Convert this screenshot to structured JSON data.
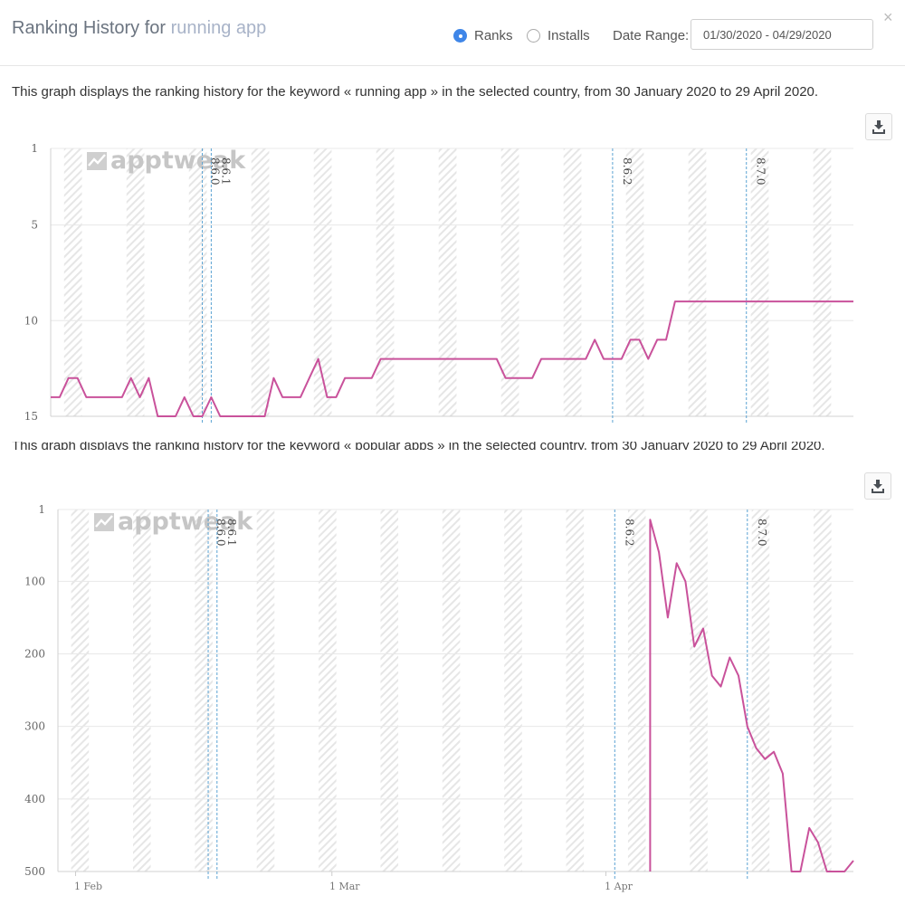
{
  "header": {
    "title_prefix": "Ranking History for",
    "keyword": "running app",
    "radio_ranks": "Ranks",
    "radio_installs": "Installs",
    "selected_radio": "Ranks",
    "date_range_label": "Date Range:",
    "date_range_value": "01/30/2020 - 04/29/2020",
    "close_glyph": "×"
  },
  "descriptions": {
    "chart1": "This graph displays the ranking history for the keyword « running app » in the selected country, from 30 January 2020 to 29 April 2020.",
    "chart2": "This graph displays the ranking history for the keyword « popular apps » in the selected country, from 30 January 2020 to 29 April 2020."
  },
  "icons": {
    "download": "download-icon",
    "close": "close-icon",
    "watermark": "apptweak-logo-icon"
  },
  "colors": {
    "line": "#c9529b",
    "version_line": "#5aa2d3",
    "accent": "#3f86e8"
  },
  "chart_data": [
    {
      "type": "line",
      "title": "",
      "watermark": "apptweak",
      "y_reversed": true,
      "ylim": [
        1,
        15
      ],
      "y_ticks": [
        "1",
        "5",
        "10",
        "15"
      ],
      "x_tick_labels": [],
      "x_start_date": "2020-01-30",
      "x_end_date": "2020-04-29",
      "weekend_shading": true,
      "versions": [
        {
          "label": "8.6.0",
          "date": "2020-02-16"
        },
        {
          "label": "8.6.1",
          "date": "2020-02-17"
        },
        {
          "label": "8.6.2",
          "date": "2020-04-02"
        },
        {
          "label": "8.7.0",
          "date": "2020-04-17"
        }
      ],
      "series": [
        {
          "x": [
            "2020-01-30",
            "2020-01-31",
            "2020-02-01",
            "2020-02-02",
            "2020-02-03",
            "2020-02-04",
            "2020-02-05",
            "2020-02-06",
            "2020-02-07",
            "2020-02-08",
            "2020-02-09",
            "2020-02-10",
            "2020-02-11",
            "2020-02-12",
            "2020-02-13",
            "2020-02-14",
            "2020-02-15",
            "2020-02-16",
            "2020-02-17",
            "2020-02-18",
            "2020-02-19",
            "2020-02-20",
            "2020-02-21",
            "2020-02-22",
            "2020-02-23",
            "2020-02-24",
            "2020-02-25",
            "2020-02-26",
            "2020-02-27",
            "2020-02-28",
            "2020-02-29",
            "2020-03-01",
            "2020-03-02",
            "2020-03-03",
            "2020-03-04",
            "2020-03-05",
            "2020-03-06",
            "2020-03-07",
            "2020-03-08",
            "2020-03-09",
            "2020-03-10",
            "2020-03-11",
            "2020-03-12",
            "2020-03-13",
            "2020-03-14",
            "2020-03-15",
            "2020-03-16",
            "2020-03-17",
            "2020-03-18",
            "2020-03-19",
            "2020-03-20",
            "2020-03-21",
            "2020-03-22",
            "2020-03-23",
            "2020-03-24",
            "2020-03-25",
            "2020-03-26",
            "2020-03-27",
            "2020-03-28",
            "2020-03-29",
            "2020-03-30",
            "2020-03-31",
            "2020-04-01",
            "2020-04-02",
            "2020-04-03",
            "2020-04-04",
            "2020-04-05",
            "2020-04-06",
            "2020-04-07",
            "2020-04-08",
            "2020-04-09",
            "2020-04-10",
            "2020-04-11",
            "2020-04-12",
            "2020-04-13",
            "2020-04-14",
            "2020-04-15",
            "2020-04-16",
            "2020-04-17",
            "2020-04-18",
            "2020-04-19",
            "2020-04-20",
            "2020-04-21",
            "2020-04-22",
            "2020-04-23",
            "2020-04-24",
            "2020-04-25",
            "2020-04-26",
            "2020-04-27",
            "2020-04-28",
            "2020-04-29"
          ],
          "y": [
            14,
            14,
            13,
            13,
            14,
            14,
            14,
            14,
            14,
            13,
            14,
            13,
            15,
            15,
            15,
            14,
            15,
            15,
            14,
            15,
            15,
            15,
            15,
            15,
            15,
            13,
            14,
            14,
            14,
            13,
            12,
            14,
            14,
            13,
            13,
            13,
            13,
            12,
            12,
            12,
            12,
            12,
            12,
            12,
            12,
            12,
            12,
            12,
            12,
            12,
            12,
            13,
            13,
            13,
            13,
            12,
            12,
            12,
            12,
            12,
            12,
            11,
            12,
            12,
            12,
            11,
            11,
            12,
            11,
            11,
            9,
            9,
            9,
            9,
            9,
            9,
            9,
            9,
            9,
            9,
            9,
            9,
            9,
            9,
            9,
            9,
            9,
            9,
            9,
            9,
            9
          ]
        }
      ]
    },
    {
      "type": "line",
      "title": "",
      "watermark": "apptweak",
      "y_reversed": true,
      "ylim": [
        1,
        500
      ],
      "y_ticks": [
        "1",
        "100",
        "200",
        "300",
        "400",
        "500"
      ],
      "x_tick_labels": [
        "1 Feb",
        "1 Mar",
        "1 Apr"
      ],
      "x_start_date": "2020-01-30",
      "x_end_date": "2020-04-29",
      "weekend_shading": true,
      "versions": [
        {
          "label": "8.6.0",
          "date": "2020-02-16"
        },
        {
          "label": "8.6.1",
          "date": "2020-02-17"
        },
        {
          "label": "8.6.2",
          "date": "2020-04-02"
        },
        {
          "label": "8.7.0",
          "date": "2020-04-17"
        }
      ],
      "series": [
        {
          "x": [
            "2020-04-06",
            "2020-04-06",
            "2020-04-07",
            "2020-04-08",
            "2020-04-09",
            "2020-04-10",
            "2020-04-11",
            "2020-04-12",
            "2020-04-13",
            "2020-04-14",
            "2020-04-15",
            "2020-04-16",
            "2020-04-17",
            "2020-04-18",
            "2020-04-19",
            "2020-04-20",
            "2020-04-21",
            "2020-04-22",
            "2020-04-23",
            "2020-04-24",
            "2020-04-25",
            "2020-04-26",
            "2020-04-27",
            "2020-04-28",
            "2020-04-29"
          ],
          "y": [
            500,
            15,
            60,
            150,
            75,
            100,
            190,
            165,
            230,
            245,
            205,
            230,
            300,
            330,
            345,
            335,
            365,
            500,
            500,
            440,
            460,
            500,
            500,
            500,
            485
          ]
        }
      ]
    }
  ]
}
